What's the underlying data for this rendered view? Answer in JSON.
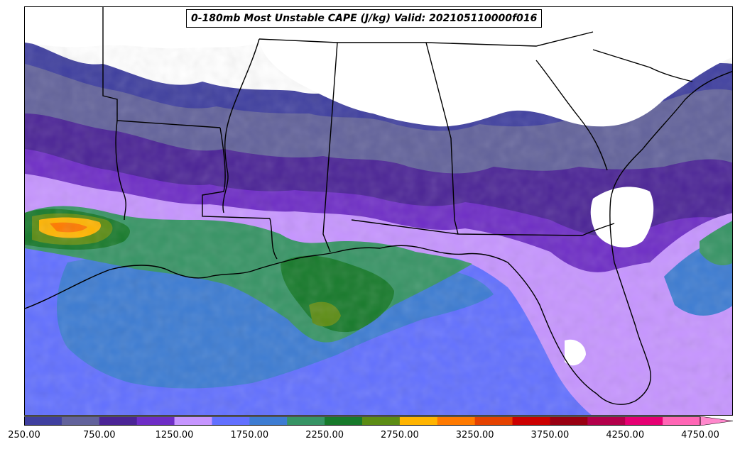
{
  "title": "0-180mb Most Unstable CAPE (J/kg) Valid: 202105110000f016",
  "colorbar": {
    "colors": [
      "#3f3f9f",
      "#62629b",
      "#4b2496",
      "#6e2dc6",
      "#c695ff",
      "#6270ff",
      "#3d7cd2",
      "#379465",
      "#177a2b",
      "#5c8c14",
      "#ffb400",
      "#ff7a00",
      "#e54200",
      "#cc0000",
      "#990012",
      "#b3004a",
      "#e60073",
      "#ff66b5"
    ],
    "extend_color": "#ff88cc",
    "tick_labels": [
      "250.00",
      "750.00",
      "1250.00",
      "1750.00",
      "2250.00",
      "2750.00",
      "3250.00",
      "3750.00",
      "4250.00",
      "4750.00"
    ],
    "min": 250,
    "max": 4750,
    "step": 250
  },
  "map": {
    "background_land": "#ffffff",
    "border_color": "#000000"
  }
}
